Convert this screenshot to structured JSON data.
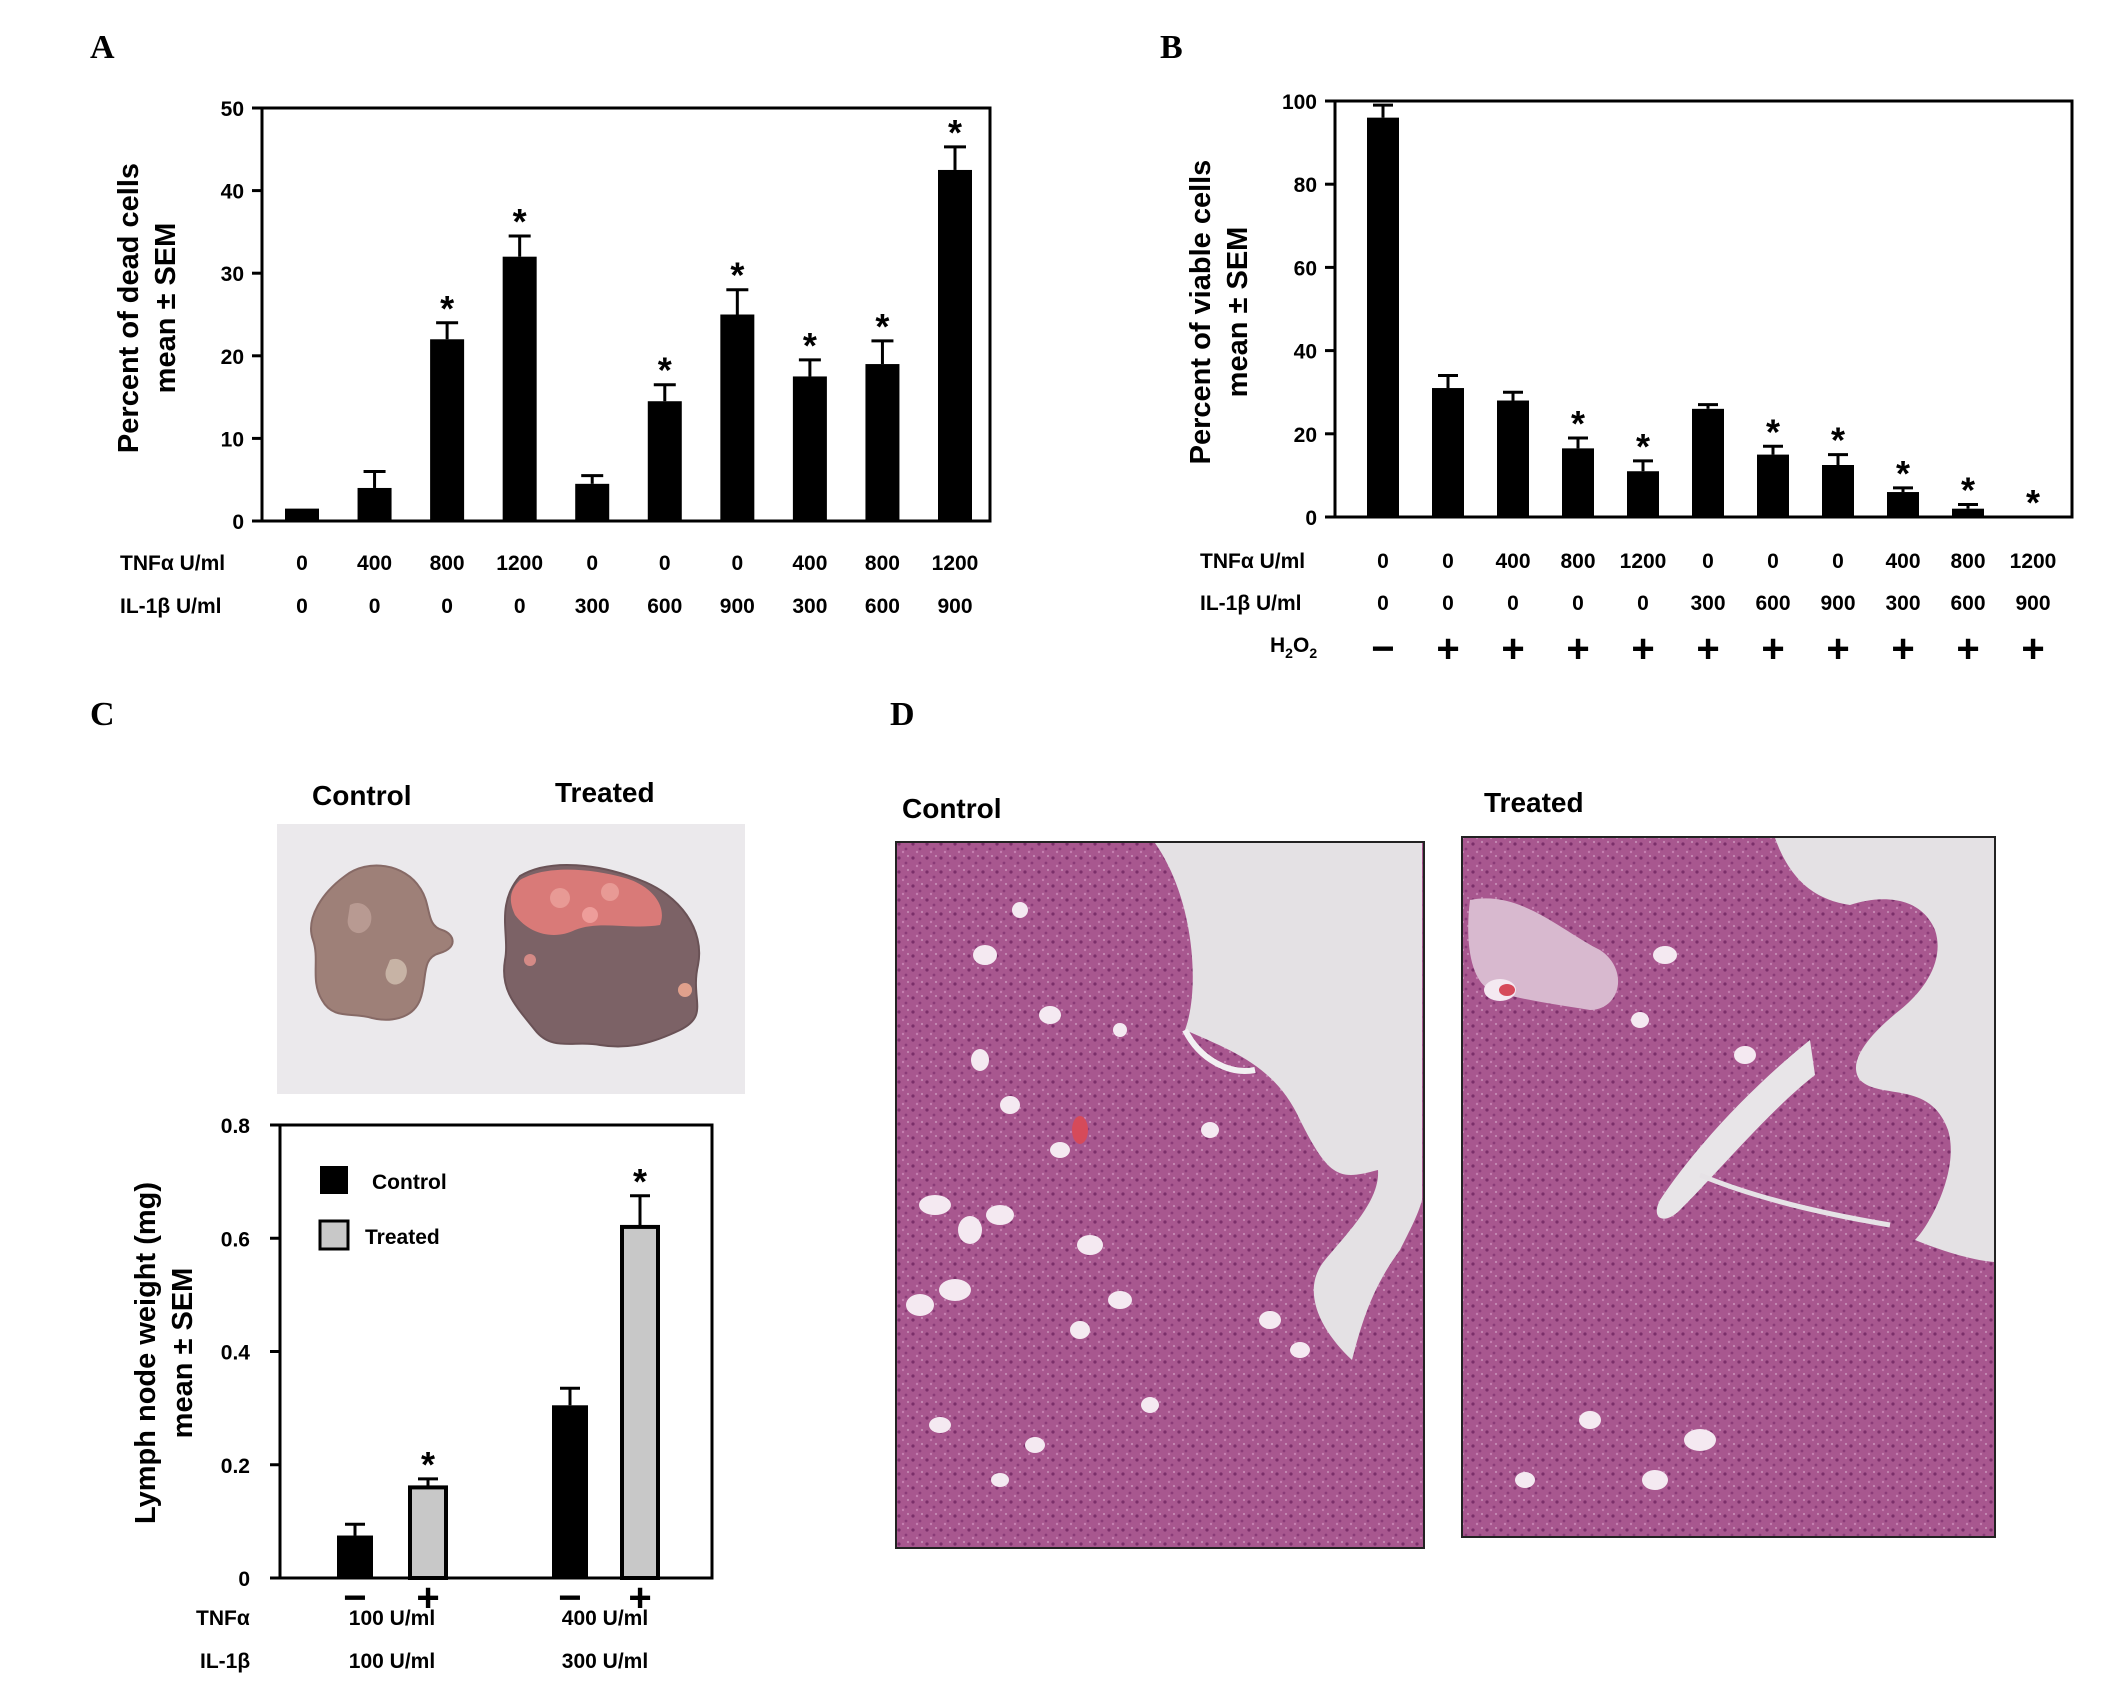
{
  "panels": {
    "a": "A",
    "b": "B",
    "c": "C",
    "d": "D"
  },
  "chart_data": [
    {
      "id": "A",
      "type": "bar",
      "ylabel_line1": "Percent of dead cells",
      "ylabel_line2": "mean ± SEM",
      "ylim": [
        0,
        50
      ],
      "yticks": [
        0,
        10,
        20,
        30,
        40,
        50
      ],
      "row_labels": [
        "TNFα U/ml",
        "IL-1β U/ml"
      ],
      "conditions": [
        [
          "0",
          "400",
          "800",
          "1200",
          "0",
          "0",
          "0",
          "400",
          "800",
          "1200"
        ],
        [
          "0",
          "0",
          "0",
          "0",
          "300",
          "600",
          "900",
          "300",
          "600",
          "900"
        ]
      ],
      "values": [
        1.5,
        4,
        22,
        32,
        4.5,
        14.5,
        25,
        17.5,
        19,
        42.5
      ],
      "errors": [
        0,
        2,
        2,
        2.5,
        1,
        2,
        3,
        2,
        2.8,
        2.8
      ],
      "significant": [
        false,
        false,
        true,
        true,
        false,
        true,
        true,
        true,
        true,
        true
      ],
      "sig_mark": "*"
    },
    {
      "id": "B",
      "type": "bar",
      "ylabel_line1": "Percent of viable cells",
      "ylabel_line2": "mean ± SEM",
      "ylim": [
        0,
        100
      ],
      "yticks": [
        0,
        20,
        40,
        60,
        80,
        100
      ],
      "row_labels": [
        "TNFα U/ml",
        "IL-1β U/ml",
        "H2O2"
      ],
      "conditions": [
        [
          "0",
          "0",
          "400",
          "800",
          "1200",
          "0",
          "0",
          "0",
          "400",
          "800",
          "1200"
        ],
        [
          "0",
          "0",
          "0",
          "0",
          "0",
          "300",
          "600",
          "900",
          "300",
          "600",
          "900"
        ],
        [
          "−",
          "+",
          "+",
          "+",
          "+",
          "+",
          "+",
          "+",
          "+",
          "+",
          "+"
        ]
      ],
      "values": [
        96,
        31,
        28,
        16.5,
        11,
        26,
        15,
        12.5,
        6,
        2,
        0
      ],
      "errors": [
        3,
        3,
        2,
        2.5,
        2.5,
        1,
        2,
        2.5,
        1,
        1,
        0
      ],
      "significant": [
        false,
        false,
        false,
        true,
        true,
        false,
        true,
        true,
        true,
        true,
        true
      ],
      "sig_mark": "*"
    },
    {
      "id": "C",
      "type": "bar",
      "ylabel_line1": "Lymph node weight (mg)",
      "ylabel_line2": "mean ± SEM",
      "ylim": [
        0,
        0.8
      ],
      "yticks": [
        "0",
        "0.2",
        "0.4",
        "0.6",
        "0.8"
      ],
      "yticks_values": [
        0,
        0.2,
        0.4,
        0.6,
        0.8
      ],
      "legend": [
        "Control",
        "Treated"
      ],
      "legend_position": "top-left",
      "groups": [
        {
          "tnf": "100 U/ml",
          "il1b": "100 U/ml"
        },
        {
          "tnf": "400 U/ml",
          "il1b": "300 U/ml"
        }
      ],
      "row_labels": [
        "TNFα",
        "IL-1β"
      ],
      "signs": [
        "−",
        "+"
      ],
      "series": [
        {
          "name": "Control",
          "values": [
            0.075,
            0.305
          ],
          "errors": [
            0.02,
            0.03
          ],
          "color": "#000000"
        },
        {
          "name": "Treated",
          "values": [
            0.16,
            0.62
          ],
          "errors": [
            0.015,
            0.055
          ],
          "color": "#c8c8c8"
        }
      ],
      "significant_treated": [
        true,
        true
      ],
      "sig_mark": "*"
    }
  ],
  "photos": {
    "c_left": "Control",
    "c_right": "Treated",
    "d_left": "Control",
    "d_right": "Treated"
  },
  "colors": {
    "bar": "#000000",
    "treated_bar": "#c8c8c8",
    "tissue": "#a8578f",
    "tissue_light": "#c78cb4",
    "node_control": "#9e8078",
    "node_treated": "#7c6266",
    "node_red": "#d97a78"
  }
}
